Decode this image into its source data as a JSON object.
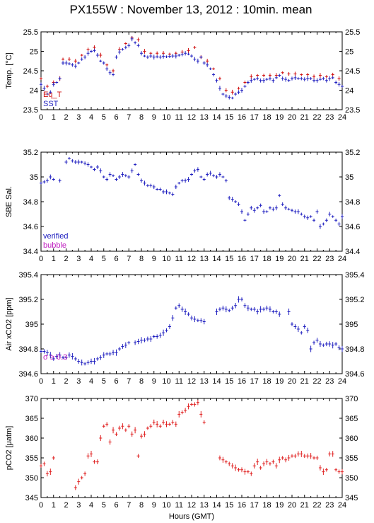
{
  "title": "PX155W : November 13, 2012 : 10min. mean",
  "xlabel": "Hours (GMT)",
  "chart_data": [
    {
      "type": "scatter",
      "ylabel": "Temp. [°C]",
      "xlim": [
        0,
        24
      ],
      "ylim": [
        23.5,
        25.5
      ],
      "yticks": [
        "23.5",
        "24",
        "24.5",
        "25",
        "25.5"
      ],
      "xticks": [
        "0",
        "1",
        "2",
        "3",
        "4",
        "5",
        "6",
        "7",
        "8",
        "9",
        "10",
        "11",
        "12",
        "13",
        "14",
        "15",
        "16",
        "17",
        "18",
        "19",
        "20",
        "21",
        "22",
        "23",
        "24"
      ],
      "legend": [
        {
          "name": "Eq_T",
          "color": "#d01010"
        },
        {
          "name": "SST",
          "color": "#2020c0"
        }
      ],
      "legend_position": "bottom-left",
      "series": [
        {
          "name": "Eq_T",
          "color": "#d01010",
          "x": [
            0,
            0.5,
            1,
            1.5,
            1.75,
            2.25,
            2.75,
            3.25,
            3.75,
            4.25,
            4.75,
            5.25,
            5.75,
            6.25,
            6.75,
            7.25,
            7.75,
            8.25,
            8.75,
            9.25,
            9.75,
            10.25,
            10.75,
            11.25,
            11.75,
            12.25,
            12.75,
            13.25,
            13.75,
            14.25,
            14.75,
            15.25,
            15.75,
            16.25,
            16.75,
            17.25,
            17.75,
            18.25,
            18.75,
            19.25,
            19.75,
            20.25,
            20.75,
            21.25,
            21.75,
            22.25,
            22.75,
            23.25,
            23.75
          ],
          "y": [
            24.3,
            24.1,
            24.2,
            24.3,
            24.8,
            24.8,
            24.75,
            24.9,
            25.05,
            25.1,
            24.9,
            24.65,
            24.5,
            25.05,
            25.2,
            25.35,
            25.3,
            25.0,
            24.95,
            24.95,
            24.95,
            24.93,
            24.95,
            24.98,
            25.02,
            25.1,
            24.85,
            24.75,
            24.55,
            24.3,
            24.0,
            23.95,
            24.05,
            24.2,
            24.35,
            24.38,
            24.38,
            24.38,
            24.38,
            24.45,
            24.42,
            24.42,
            24.4,
            24.4,
            24.35,
            24.38,
            24.35,
            24.4,
            24.3
          ]
        },
        {
          "name": "SST",
          "color": "#2020c0",
          "x": [
            0,
            0.25,
            0.5,
            0.75,
            1,
            1.25,
            1.5,
            1.75,
            2,
            2.25,
            2.5,
            2.75,
            3,
            3.25,
            3.5,
            3.75,
            4,
            4.25,
            4.5,
            4.75,
            5,
            5.25,
            5.5,
            5.75,
            6,
            6.25,
            6.5,
            6.75,
            7,
            7.25,
            7.5,
            7.75,
            8,
            8.25,
            8.5,
            8.75,
            9,
            9.25,
            9.5,
            9.75,
            10,
            10.25,
            10.5,
            10.75,
            11,
            11.25,
            11.5,
            11.75,
            12,
            12.25,
            12.5,
            12.75,
            13,
            13.25,
            13.5,
            13.75,
            14,
            14.25,
            14.5,
            14.75,
            15,
            15.25,
            15.5,
            15.75,
            16,
            16.25,
            16.5,
            16.75,
            17,
            17.25,
            17.5,
            17.75,
            18,
            18.25,
            18.5,
            18.75,
            19,
            19.25,
            19.5,
            19.75,
            20,
            20.25,
            20.5,
            20.75,
            21,
            21.25,
            21.5,
            21.75,
            22,
            22.25,
            22.5,
            22.75,
            23,
            23.25,
            23.5,
            23.75,
            24
          ],
          "y": [
            24.15,
            24.05,
            23.9,
            23.95,
            24.15,
            24.2,
            24.3,
            24.7,
            24.7,
            24.68,
            24.65,
            24.62,
            24.7,
            24.8,
            24.85,
            24.95,
            25.0,
            25.02,
            24.9,
            24.75,
            24.7,
            24.55,
            24.45,
            24.4,
            24.85,
            24.98,
            25.05,
            25.1,
            25.15,
            25.32,
            25.22,
            25.15,
            24.95,
            24.88,
            24.85,
            24.88,
            24.85,
            24.86,
            24.85,
            24.87,
            24.86,
            24.87,
            24.88,
            24.88,
            24.9,
            24.92,
            24.95,
            24.93,
            24.88,
            24.8,
            24.75,
            24.85,
            24.7,
            24.65,
            24.55,
            24.4,
            24.25,
            24.05,
            23.9,
            23.85,
            23.82,
            23.8,
            23.9,
            23.95,
            24.0,
            24.1,
            24.2,
            24.25,
            24.28,
            24.3,
            24.25,
            24.25,
            24.28,
            24.3,
            24.25,
            24.32,
            24.38,
            24.3,
            24.28,
            24.25,
            24.3,
            24.32,
            24.3,
            24.3,
            24.28,
            24.3,
            24.3,
            24.25,
            24.25,
            24.28,
            24.3,
            24.25,
            24.3,
            24.32,
            24.2,
            24.15,
            24.1
          ]
        }
      ]
    },
    {
      "type": "scatter",
      "ylabel": "SBE Sal.",
      "xlim": [
        0,
        24
      ],
      "ylim": [
        34.4,
        35.2
      ],
      "yticks": [
        "34.4",
        "34.6",
        "34.8",
        "35",
        "35.2"
      ],
      "xticks": [
        "0",
        "1",
        "2",
        "3",
        "4",
        "5",
        "6",
        "7",
        "8",
        "9",
        "10",
        "11",
        "12",
        "13",
        "14",
        "15",
        "16",
        "17",
        "18",
        "19",
        "20",
        "21",
        "22",
        "23",
        "24"
      ],
      "legend": [
        {
          "name": "verified",
          "color": "#2020c0"
        },
        {
          "name": "bubble",
          "color": "#c020c0"
        }
      ],
      "legend_position": "bottom-left",
      "series": [
        {
          "name": "verified",
          "color": "#2020c0",
          "x": [
            0,
            0.25,
            0.5,
            0.75,
            1,
            1.5,
            2,
            2.25,
            2.5,
            2.75,
            3,
            3.25,
            3.5,
            3.75,
            4,
            4.25,
            4.5,
            4.75,
            5,
            5.25,
            5.5,
            5.75,
            6,
            6.25,
            6.5,
            6.75,
            7,
            7.25,
            7.5,
            7.75,
            8,
            8.25,
            8.5,
            8.75,
            9,
            9.25,
            9.5,
            9.75,
            10,
            10.25,
            10.5,
            10.75,
            11,
            11.25,
            11.5,
            11.75,
            12,
            12.25,
            12.5,
            12.75,
            13,
            13.25,
            13.5,
            13.75,
            14,
            14.25,
            14.5,
            14.75,
            15,
            15.25,
            15.5,
            15.75,
            16,
            16.25,
            16.5,
            16.75,
            17,
            17.25,
            17.5,
            17.75,
            18,
            18.25,
            18.5,
            18.75,
            19,
            19.25,
            19.5,
            19.75,
            20,
            20.25,
            20.5,
            20.75,
            21,
            21.25,
            21.5,
            21.75,
            22,
            22.25,
            22.5,
            22.75,
            23,
            23.25,
            23.5,
            23.75,
            24
          ],
          "y": [
            34.95,
            34.96,
            34.97,
            35.0,
            34.98,
            34.97,
            35.12,
            35.15,
            35.13,
            35.12,
            35.12,
            35.12,
            35.11,
            35.1,
            35.08,
            35.06,
            35.08,
            35.05,
            35.0,
            34.98,
            35.02,
            35.01,
            34.98,
            35.0,
            35.02,
            35.01,
            35.0,
            35.05,
            35.1,
            35.02,
            34.97,
            34.95,
            34.93,
            34.93,
            34.92,
            34.9,
            34.9,
            34.88,
            34.88,
            34.87,
            34.86,
            34.92,
            34.95,
            34.97,
            34.97,
            34.98,
            35.02,
            35.05,
            35.06,
            35.0,
            34.98,
            35.02,
            35.03,
            35.01,
            35.0,
            35.02,
            35.0,
            34.97,
            34.83,
            34.82,
            34.8,
            34.78,
            34.72,
            34.65,
            34.7,
            34.75,
            34.73,
            34.75,
            34.77,
            34.72,
            34.72,
            34.75,
            34.74,
            34.75,
            34.85,
            34.78,
            34.75,
            34.74,
            34.73,
            34.72,
            34.72,
            34.7,
            34.68,
            34.67,
            34.68,
            34.65,
            34.72,
            34.6,
            34.62,
            34.65,
            34.7,
            34.68,
            34.65,
            34.62,
            34.68
          ]
        }
      ]
    },
    {
      "type": "scatter",
      "ylabel": "Air xCO2 [ppm]",
      "xlim": [
        0,
        24
      ],
      "ylim": [
        394.6,
        395.4
      ],
      "yticks": [
        "394.6",
        "394.8",
        "395",
        "395.2",
        "395.4"
      ],
      "xticks": [
        "0",
        "1",
        "2",
        "3",
        "4",
        "5",
        "6",
        "7",
        "8",
        "9",
        "10",
        "11",
        "12",
        "13",
        "14",
        "15",
        "16",
        "17",
        "18",
        "19",
        "20",
        "21",
        "22",
        "23",
        "24"
      ],
      "annotation": "σ ≥ 0.3",
      "series": [
        {
          "name": "Air xCO2",
          "color": "#2020c0",
          "x": [
            0,
            0.25,
            0.5,
            0.75,
            1,
            1.25,
            1.5,
            1.75,
            2,
            2.25,
            2.5,
            2.75,
            3,
            3.25,
            3.5,
            3.75,
            4,
            4.25,
            4.5,
            4.75,
            5,
            5.25,
            5.5,
            5.75,
            6,
            6.25,
            6.5,
            6.75,
            7,
            7.5,
            7.75,
            8,
            8.25,
            8.5,
            8.75,
            9,
            9.25,
            9.5,
            9.75,
            10,
            10.25,
            10.5,
            10.75,
            11,
            11.25,
            11.5,
            11.75,
            12,
            12.25,
            12.5,
            12.75,
            13,
            14,
            14.25,
            14.5,
            14.75,
            15,
            15.25,
            15.5,
            15.75,
            16,
            16.25,
            16.5,
            16.75,
            17,
            17.25,
            17.5,
            17.75,
            18,
            18.25,
            18.5,
            18.75,
            19,
            19.75,
            20,
            20.25,
            20.5,
            20.75,
            21,
            21.25,
            21.5,
            21.75,
            22,
            22.25,
            22.5,
            22.75,
            23,
            23.25,
            23.5,
            23.75,
            24
          ],
          "y": [
            394.78,
            394.78,
            394.77,
            394.75,
            394.72,
            394.74,
            394.75,
            394.73,
            394.73,
            394.75,
            394.74,
            394.72,
            394.7,
            394.69,
            394.68,
            394.69,
            394.7,
            394.7,
            394.72,
            394.73,
            394.75,
            394.76,
            394.76,
            394.77,
            394.77,
            394.8,
            394.82,
            394.83,
            394.85,
            394.85,
            394.86,
            394.87,
            394.87,
            394.88,
            394.88,
            394.9,
            394.9,
            394.91,
            394.93,
            394.95,
            394.98,
            395.05,
            395.13,
            395.15,
            395.12,
            395.1,
            395.08,
            395.05,
            395.04,
            395.03,
            395.03,
            395.02,
            395.1,
            395.12,
            395.13,
            395.12,
            395.11,
            395.13,
            395.15,
            395.2,
            395.2,
            395.15,
            395.13,
            395.12,
            395.12,
            395.1,
            395.12,
            395.12,
            395.13,
            395.12,
            395.1,
            395.1,
            395.08,
            395.1,
            395.0,
            394.98,
            394.96,
            394.93,
            394.98,
            394.95,
            394.8,
            394.85,
            394.87,
            394.84,
            394.83,
            394.84,
            394.84,
            394.83,
            394.84,
            394.81,
            394.8
          ]
        }
      ]
    },
    {
      "type": "scatter",
      "ylabel": "pCO2 [μatm]",
      "xlim": [
        0,
        24
      ],
      "ylim": [
        345,
        370
      ],
      "yticks": [
        "345",
        "350",
        "355",
        "360",
        "365",
        "370"
      ],
      "xticks": [
        "0",
        "1",
        "2",
        "3",
        "4",
        "5",
        "6",
        "7",
        "8",
        "9",
        "10",
        "11",
        "12",
        "13",
        "14",
        "15",
        "16",
        "17",
        "18",
        "19",
        "20",
        "21",
        "22",
        "23",
        "24"
      ],
      "series": [
        {
          "name": "pCO2",
          "color": "#e02020",
          "x": [
            0,
            0.25,
            0.5,
            0.75,
            1,
            2.75,
            3,
            3.25,
            3.5,
            3.75,
            4,
            4.25,
            4.5,
            4.75,
            5,
            5.25,
            5.5,
            5.75,
            6,
            6.25,
            6.5,
            6.75,
            7,
            7.25,
            7.5,
            7.75,
            8,
            8.25,
            8.5,
            8.75,
            9,
            9.25,
            9.5,
            9.75,
            10,
            10.25,
            10.5,
            10.75,
            11,
            11.25,
            11.5,
            11.75,
            12,
            12.25,
            12.5,
            12.75,
            13,
            14.25,
            14.5,
            14.75,
            15,
            15.25,
            15.5,
            15.75,
            16,
            16.25,
            16.5,
            16.75,
            17,
            17.25,
            17.5,
            17.75,
            18,
            18.25,
            18.5,
            18.75,
            19,
            19.25,
            19.5,
            19.75,
            20,
            20.25,
            20.5,
            20.75,
            21,
            21.25,
            21.5,
            21.75,
            22,
            22.25,
            22.5,
            22.75,
            23,
            23.25,
            23.5,
            23.75,
            24
          ],
          "y": [
            353,
            353.5,
            351,
            351.5,
            355,
            347.5,
            349,
            350,
            351,
            355.5,
            356,
            354,
            354,
            360,
            363,
            363.5,
            359,
            362,
            361,
            362.5,
            363,
            362,
            363,
            361,
            362,
            355.5,
            360.5,
            361,
            362.5,
            363,
            364,
            363.5,
            363,
            364,
            363.5,
            363.5,
            364,
            363.5,
            366,
            366.5,
            367,
            368,
            368.5,
            368.5,
            369,
            366,
            364,
            355,
            354.5,
            354,
            353.5,
            353,
            352.5,
            352,
            352,
            351.5,
            351.5,
            351,
            353,
            354,
            352.5,
            353.5,
            354,
            353.5,
            354,
            353,
            354.5,
            355,
            354.5,
            355,
            355.5,
            355.5,
            356,
            356,
            355.5,
            355.5,
            355.5,
            355,
            355,
            352.5,
            351.5,
            352,
            356,
            356,
            352,
            351.5,
            351.5
          ]
        }
      ]
    }
  ]
}
